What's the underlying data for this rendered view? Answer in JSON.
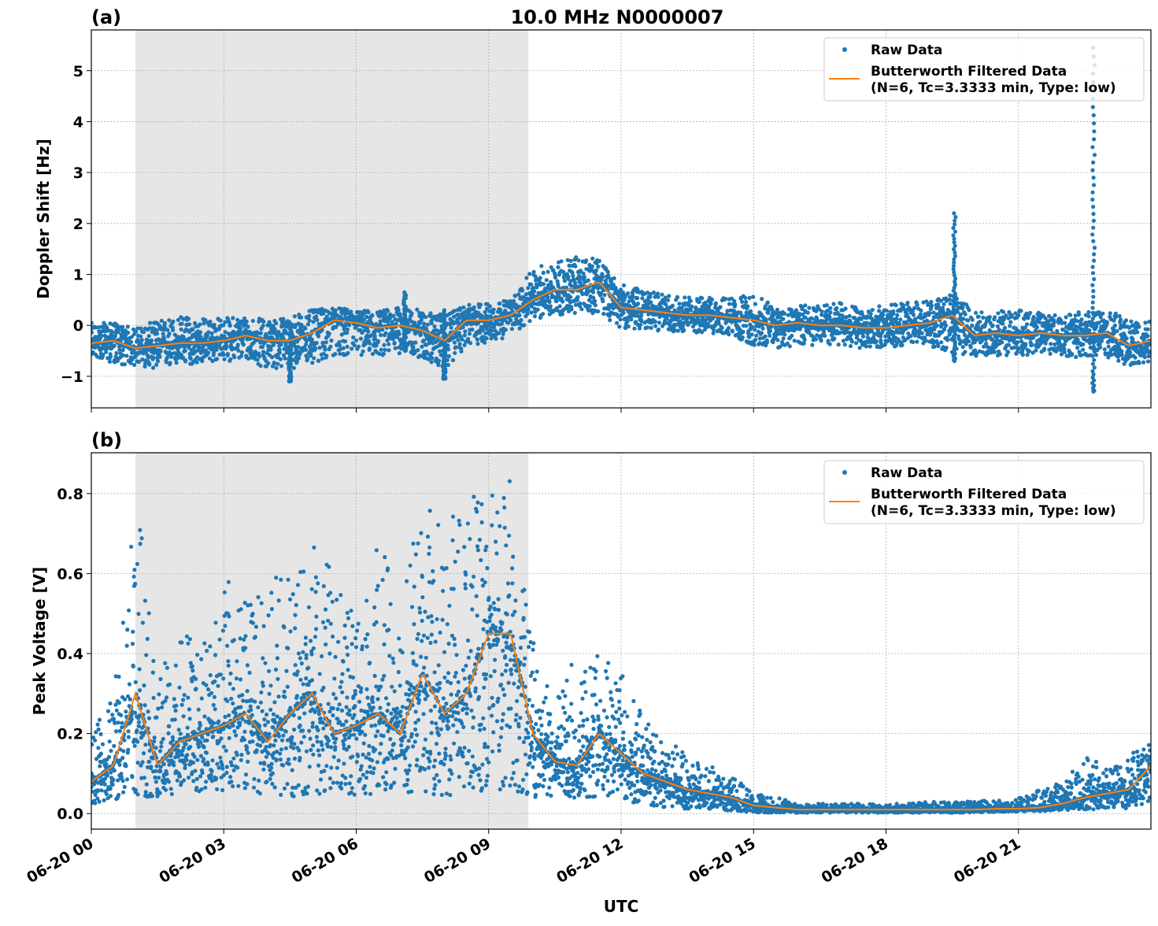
{
  "title": "10.0 MHz N0000007",
  "colors": {
    "raw": "#1f77b4",
    "filtered": "#ff7f0e",
    "shade": "#e6e6e6",
    "grid": "#b0b0b0"
  },
  "chart_data": [
    {
      "type": "scatter+line",
      "panel_label": "(a)",
      "ylabel": "Doppler Shift [Hz]",
      "xlabel": "",
      "xlim_hours": [
        0,
        24
      ],
      "ylim": [
        -1.62,
        5.8
      ],
      "yticks": [
        -1,
        0,
        1,
        2,
        3,
        4,
        5
      ],
      "ytick_labels": [
        "−1",
        "0",
        "1",
        "2",
        "3",
        "4",
        "5"
      ],
      "grid": true,
      "legend": {
        "placement": "top-right",
        "entries": [
          "Raw Data",
          "Butterworth Filtered Data",
          "(N=6, Tc=3.3333 min, Type: low)"
        ]
      },
      "shaded_region_hours": [
        1.0,
        9.9
      ],
      "x_hours": [
        0,
        0.5,
        1,
        1.5,
        2,
        2.5,
        3,
        3.5,
        4,
        4.5,
        5,
        5.5,
        6,
        6.5,
        7,
        7.5,
        8,
        8.5,
        9,
        9.5,
        10,
        10.5,
        11,
        11.5,
        12,
        12.5,
        13,
        13.5,
        14,
        14.5,
        15,
        15.5,
        16,
        16.5,
        17,
        17.5,
        18,
        18.5,
        19,
        19.5,
        20,
        20.5,
        21,
        21.5,
        22,
        22.5,
        23,
        23.5,
        24
      ],
      "series": [
        {
          "name": "Butterworth Filtered Data",
          "values": [
            -0.35,
            -0.3,
            -0.45,
            -0.4,
            -0.35,
            -0.35,
            -0.3,
            -0.2,
            -0.3,
            -0.3,
            -0.15,
            0.1,
            0.05,
            -0.05,
            0.0,
            -0.1,
            -0.3,
            0.1,
            0.1,
            0.2,
            0.5,
            0.7,
            0.7,
            0.85,
            0.35,
            0.3,
            0.25,
            0.2,
            0.2,
            0.15,
            0.1,
            0.0,
            0.05,
            0.0,
            0.0,
            -0.05,
            -0.05,
            0.0,
            0.05,
            0.2,
            -0.2,
            -0.15,
            -0.2,
            -0.15,
            -0.2,
            -0.2,
            -0.15,
            -0.4,
            -0.3
          ]
        },
        {
          "name": "Raw Data",
          "upper": [
            0.05,
            0.05,
            -0.05,
            0.1,
            0.2,
            0.15,
            0.15,
            0.2,
            0.1,
            0.2,
            0.3,
            0.35,
            0.3,
            0.3,
            0.35,
            0.3,
            0.2,
            0.4,
            0.45,
            0.5,
            1.1,
            1.3,
            1.35,
            1.3,
            0.8,
            0.7,
            0.6,
            0.55,
            0.55,
            0.55,
            0.6,
            0.4,
            0.4,
            0.4,
            0.45,
            0.35,
            0.4,
            0.45,
            0.5,
            0.6,
            0.3,
            0.3,
            0.3,
            0.25,
            0.2,
            0.3,
            0.35,
            0.2,
            0.15
          ],
          "lower": [
            -0.6,
            -0.75,
            -0.8,
            -0.85,
            -0.8,
            -0.75,
            -0.7,
            -0.7,
            -0.85,
            -0.85,
            -0.8,
            -0.6,
            -0.6,
            -0.6,
            -0.55,
            -0.65,
            -0.9,
            -0.4,
            -0.35,
            -0.2,
            0.1,
            0.2,
            0.2,
            0.25,
            -0.05,
            -0.1,
            -0.1,
            -0.15,
            -0.15,
            -0.2,
            -0.4,
            -0.45,
            -0.4,
            -0.4,
            -0.4,
            -0.45,
            -0.45,
            -0.4,
            -0.4,
            -0.55,
            -0.6,
            -0.6,
            -0.6,
            -0.55,
            -0.6,
            -0.65,
            -0.65,
            -0.8,
            -0.7
          ],
          "spikes": [
            [
              19.55,
              2.2,
              -0.7
            ],
            [
              22.7,
              5.45,
              -1.3
            ],
            [
              7.1,
              0.65,
              -0.5
            ],
            [
              8.0,
              0.3,
              -1.05
            ],
            [
              4.5,
              0.0,
              -1.1
            ]
          ]
        }
      ]
    },
    {
      "type": "scatter+line",
      "panel_label": "(b)",
      "ylabel": "Peak Voltage [V]",
      "xlabel": "UTC",
      "xlim_hours": [
        0,
        24
      ],
      "ylim": [
        -0.039,
        0.902
      ],
      "yticks": [
        0.0,
        0.2,
        0.4,
        0.6,
        0.8
      ],
      "ytick_labels": [
        "0.0",
        "0.2",
        "0.4",
        "0.6",
        "0.8"
      ],
      "xtick_labels": [
        "06-20 00",
        "06-20 03",
        "06-20 06",
        "06-20 09",
        "06-20 12",
        "06-20 15",
        "06-20 18",
        "06-20 21"
      ],
      "xticks_hours": [
        0,
        3,
        6,
        9,
        12,
        15,
        18,
        21
      ],
      "grid": true,
      "legend": {
        "placement": "top-right",
        "entries": [
          "Raw Data",
          "Butterworth Filtered Data",
          "(N=6, Tc=3.3333 min, Type: low)"
        ]
      },
      "shaded_region_hours": [
        1.0,
        9.9
      ],
      "x_hours": [
        0,
        0.5,
        1,
        1.5,
        2,
        2.5,
        3,
        3.5,
        4,
        4.5,
        5,
        5.5,
        6,
        6.5,
        7,
        7.5,
        8,
        8.5,
        9,
        9.5,
        10,
        10.5,
        11,
        11.5,
        12,
        12.5,
        13,
        13.5,
        14,
        14.5,
        15,
        15.5,
        16,
        16.5,
        17,
        17.5,
        18,
        18.5,
        19,
        19.5,
        20,
        20.5,
        21,
        21.5,
        22,
        22.5,
        23,
        23.5,
        24
      ],
      "series": [
        {
          "name": "Butterworth Filtered Data",
          "values": [
            0.08,
            0.12,
            0.3,
            0.12,
            0.18,
            0.2,
            0.22,
            0.25,
            0.18,
            0.25,
            0.3,
            0.2,
            0.22,
            0.25,
            0.2,
            0.35,
            0.25,
            0.3,
            0.45,
            0.45,
            0.2,
            0.13,
            0.12,
            0.2,
            0.15,
            0.1,
            0.08,
            0.06,
            0.05,
            0.04,
            0.02,
            0.015,
            0.01,
            0.01,
            0.01,
            0.01,
            0.01,
            0.01,
            0.01,
            0.01,
            0.01,
            0.012,
            0.012,
            0.015,
            0.025,
            0.04,
            0.05,
            0.06,
            0.12
          ]
        },
        {
          "name": "Raw Data",
          "upper": [
            0.2,
            0.3,
            0.84,
            0.35,
            0.48,
            0.45,
            0.6,
            0.53,
            0.6,
            0.6,
            0.68,
            0.62,
            0.55,
            0.68,
            0.55,
            0.78,
            0.72,
            0.8,
            0.8,
            0.86,
            0.45,
            0.3,
            0.4,
            0.4,
            0.35,
            0.25,
            0.2,
            0.15,
            0.12,
            0.1,
            0.05,
            0.04,
            0.03,
            0.025,
            0.025,
            0.025,
            0.025,
            0.025,
            0.03,
            0.03,
            0.03,
            0.035,
            0.04,
            0.06,
            0.08,
            0.15,
            0.12,
            0.16,
            0.2
          ],
          "lower": [
            0.02,
            0.03,
            0.03,
            0.04,
            0.05,
            0.05,
            0.05,
            0.05,
            0.05,
            0.04,
            0.05,
            0.04,
            0.04,
            0.05,
            0.05,
            0.05,
            0.04,
            0.05,
            0.06,
            0.06,
            0.03,
            0.04,
            0.04,
            0.04,
            0.03,
            0.02,
            0.015,
            0.01,
            0.01,
            0.005,
            0.003,
            0.002,
            0.002,
            0.002,
            0.002,
            0.002,
            0.002,
            0.002,
            0.002,
            0.002,
            0.003,
            0.004,
            0.005,
            0.006,
            0.008,
            0.01,
            0.01,
            0.01,
            0.03
          ],
          "spikes": []
        }
      ]
    }
  ]
}
